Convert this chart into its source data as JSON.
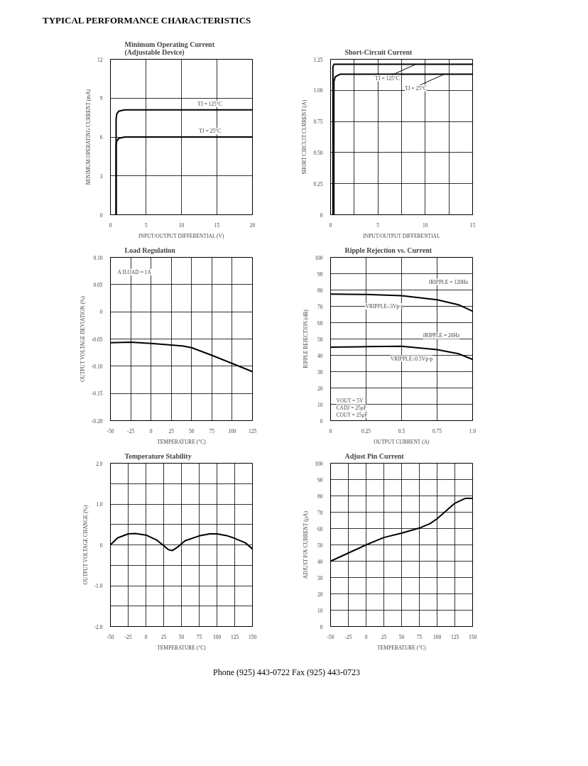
{
  "chart_data": [
    {
      "type": "line",
      "title": "Minimum Operating Current\n(Adjustable Device)",
      "xlabel": "INPUT/OUTPUT DIFFERENTIAL (V)",
      "ylabel": "MINIMUM OPERATING CURRENT (mA)",
      "annotations": [
        "TYPICAL PERFORMANCE CHARACTERISTICS"
      ],
      "xlim": [
        0,
        20
      ],
      "ylim": [
        0,
        12
      ],
      "xticks": [
        0,
        5,
        10,
        15,
        20
      ],
      "yticks": [
        0,
        3,
        6,
        9,
        12
      ],
      "grid": true,
      "series": [
        {
          "name": "TJ = 125°C",
          "color": "#000000",
          "x": [
            0.8,
            0.8,
            0.9,
            1.2,
            2,
            20
          ],
          "values": [
            0,
            7.4,
            7.8,
            8.0,
            8.1,
            8.1
          ]
        },
        {
          "name": "TJ = 25°C",
          "color": "#000000",
          "x": [
            0.8,
            0.8,
            0.9,
            1.2,
            2,
            20
          ],
          "values": [
            0,
            5.4,
            5.7,
            5.9,
            6.0,
            6.0
          ]
        }
      ]
    },
    {
      "type": "line",
      "title": "Short-Circuit Current",
      "xlabel": "INPUT/OUTPUT DIFFERENTIAL",
      "ylabel": "SHORT CIRCUIT CURRENT (A)",
      "xlim": [
        0,
        15
      ],
      "ylim": [
        0,
        1.25
      ],
      "xticks": [
        0,
        {
          "value": 2.5,
          "label": null
        },
        5,
        {
          "value": 7.5,
          "label": null
        },
        10,
        {
          "value": 12.5,
          "label": null
        },
        15
      ],
      "yticks": [
        0,
        0.25,
        {
          "value": 0.5,
          "label": "0.50"
        },
        0.75,
        {
          "value": 1,
          "label": "1.00"
        },
        1.25
      ],
      "grid": true,
      "series": [
        {
          "name": "TJ = 125°C",
          "color": "#000000",
          "x": [
            0.25,
            0.25,
            0.35,
            15
          ],
          "values": [
            0,
            1.19,
            1.21,
            1.21
          ]
        },
        {
          "name": "TJ = 25°C",
          "color": "#000000",
          "x": [
            0.35,
            0.35,
            0.5,
            1,
            15
          ],
          "values": [
            0,
            1.07,
            1.11,
            1.13,
            1.13
          ]
        }
      ]
    },
    {
      "type": "line",
      "title": "Load Regulation",
      "xlabel": "TEMPERATURE (°C)",
      "ylabel": "OUTPUT VOLTAGE DEVIATION (%)",
      "annotations": [
        "A ILOAD = 1A"
      ],
      "xlim": [
        -50,
        125
      ],
      "ylim": [
        -0.2,
        0.1
      ],
      "xticks": [
        -50,
        -25,
        0,
        25,
        50,
        75,
        100,
        125
      ],
      "yticks": [
        {
          "value": -0.2,
          "label": "-0.20"
        },
        -0.15,
        {
          "value": -0.1,
          "label": "-0.10"
        },
        -0.05,
        0,
        0.05,
        {
          "value": 0.1,
          "label": "0.10"
        }
      ],
      "grid": true,
      "series": [
        {
          "color": "#000000",
          "x": [
            -50,
            -25,
            0,
            25,
            40,
            50,
            75,
            100,
            125
          ],
          "values": [
            -0.057,
            -0.056,
            -0.058,
            -0.061,
            -0.063,
            -0.066,
            -0.08,
            -0.095,
            -0.11
          ]
        }
      ]
    },
    {
      "type": "line",
      "title": "Ripple Rejection vs. Current",
      "xlabel": "OUTPUT CURRENT (A)",
      "ylabel": "RIPPLE REJECTION (dB)",
      "annotations": [
        "fRIPPLE = 120Hz",
        "VRIPPLE≤3Vp-p",
        "fRIPPLE = 20Hz",
        "VRIPPLE≤0.5Vp-p",
        "VOUT = 5V",
        "CADJ = 25µF",
        "COUT = 25µF"
      ],
      "xlim": [
        0,
        1
      ],
      "ylim": [
        0,
        100
      ],
      "xticks": [
        0,
        0.25,
        0.5,
        0.75,
        {
          "value": 1,
          "label": "1.0"
        }
      ],
      "yticks": [
        0,
        10,
        20,
        30,
        40,
        50,
        60,
        70,
        80,
        90,
        100
      ],
      "grid": true,
      "series": [
        {
          "color": "#000000",
          "x": [
            0,
            0.25,
            0.5,
            0.75,
            0.9,
            1.0
          ],
          "values": [
            77.5,
            77.3,
            76.5,
            74,
            71,
            67
          ]
        },
        {
          "color": "#000000",
          "x": [
            0,
            0.25,
            0.5,
            0.75,
            0.9,
            1.0
          ],
          "values": [
            45,
            45.3,
            45.5,
            43.5,
            41,
            37.5
          ]
        }
      ]
    },
    {
      "type": "line",
      "title": "Temperature Stability",
      "xlabel": "TEMPERATURE (°C)",
      "ylabel": "OUTPUT VOLTAGE CHANGE (%)",
      "xlim": [
        -50,
        150
      ],
      "ylim": [
        -2,
        2
      ],
      "xticks": [
        -50,
        -25,
        0,
        25,
        50,
        75,
        100,
        125,
        150
      ],
      "yticks": [
        {
          "value": -2,
          "label": "-2.0"
        },
        {
          "value": -1.5,
          "label": null
        },
        {
          "value": -1,
          "label": "-1.0"
        },
        {
          "value": -0.5,
          "label": null
        },
        0,
        {
          "value": 0.5,
          "label": null
        },
        {
          "value": 1,
          "label": "1.0"
        },
        {
          "value": 1.5,
          "label": null
        },
        {
          "value": 2,
          "label": "2.0"
        }
      ],
      "grid": true,
      "series": [
        {
          "color": "#000000",
          "x": [
            -50,
            -40,
            -25,
            -15,
            0,
            15,
            25,
            32,
            37,
            45,
            55,
            75,
            90,
            100,
            115,
            125,
            140,
            150
          ],
          "values": [
            0,
            0.17,
            0.27,
            0.28,
            0.24,
            0.12,
            -0.02,
            -0.12,
            -0.14,
            -0.05,
            0.1,
            0.22,
            0.27,
            0.27,
            0.22,
            0.16,
            0.05,
            -0.1
          ]
        }
      ]
    },
    {
      "type": "line",
      "title": "Adjust Pin Current",
      "xlabel": "TEMPERATURE (°C)",
      "ylabel": "ADJUST PIN CURRENT (µA)",
      "annotations": [
        "Phone (925) 443-0722    Fax (925) 443-0723"
      ],
      "xlim": [
        -50,
        150
      ],
      "ylim": [
        0,
        100
      ],
      "xticks": [
        -50,
        -25,
        0,
        25,
        50,
        75,
        100,
        125,
        150
      ],
      "yticks": [
        0,
        10,
        20,
        30,
        40,
        50,
        60,
        70,
        80,
        90,
        100
      ],
      "grid": true,
      "series": [
        {
          "color": "#000000",
          "x": [
            -50,
            -25,
            0,
            25,
            50,
            75,
            90,
            100,
            125,
            140,
            150
          ],
          "values": [
            40,
            45,
            50,
            54.5,
            57.2,
            60.3,
            63,
            66,
            75.5,
            78.5,
            78.5
          ]
        }
      ]
    }
  ]
}
